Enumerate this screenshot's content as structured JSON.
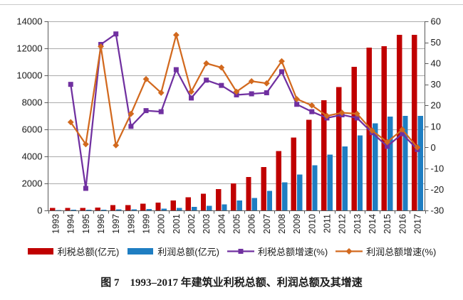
{
  "caption": {
    "text": "图 7　1993–2017 年建筑业利税总额、利润总额及其增速"
  },
  "chart_data": {
    "type": "bar+line combo",
    "categories": [
      "1993",
      "1994",
      "1995",
      "1996",
      "1997",
      "1998",
      "1999",
      "2000",
      "2001",
      "2002",
      "2003",
      "2004",
      "2005",
      "2006",
      "2007",
      "2008",
      "2009",
      "2010",
      "2011",
      "2012",
      "2013",
      "2014",
      "2015",
      "2016",
      "2017"
    ],
    "series": [
      {
        "name": "利税总额(亿元)",
        "type": "bar",
        "axis": "left",
        "color": "#c00000",
        "values": [
          175,
          190,
          180,
          220,
          385,
          405,
          490,
          580,
          750,
          965,
          1225,
          1580,
          2000,
          2480,
          3220,
          4390,
          5400,
          6720,
          8160,
          9120,
          10630,
          12040,
          12160,
          13000,
          13000
        ]
      },
      {
        "name": "利润总额(亿元)",
        "type": "bar",
        "axis": "left",
        "color": "#1f7ec2",
        "values": [
          35,
          50,
          40,
          55,
          75,
          90,
          105,
          140,
          195,
          265,
          350,
          460,
          750,
          930,
          1460,
          2070,
          2650,
          3350,
          4140,
          4740,
          5540,
          6450,
          6950,
          7000,
          7000
        ]
      },
      {
        "name": "利税总额增速(%)",
        "type": "line",
        "marker": "square",
        "axis": "right",
        "color": "#7030a0",
        "values": [
          null,
          30,
          -19.5,
          49,
          54,
          10,
          17.5,
          17,
          37,
          23.5,
          32,
          29.5,
          25,
          25.5,
          26,
          36,
          20.5,
          17,
          14,
          15.5,
          14,
          7,
          0.5,
          6.5,
          -1
        ]
      },
      {
        "name": "利润总额增速(%)",
        "type": "line",
        "marker": "diamond",
        "axis": "right",
        "color": "#d2691e",
        "values": [
          null,
          12,
          1.5,
          48,
          1,
          16,
          32.5,
          26,
          53.5,
          26.5,
          40,
          38,
          26.5,
          31.5,
          30.5,
          41,
          23,
          20,
          15,
          16.5,
          16,
          8,
          2.5,
          8.5,
          0
        ]
      }
    ],
    "left_axis": {
      "min": 0,
      "max": 14000,
      "step": 2000
    },
    "right_axis": {
      "min": -30,
      "max": 60,
      "step": 10
    },
    "grid": true,
    "legend_position": "bottom"
  }
}
